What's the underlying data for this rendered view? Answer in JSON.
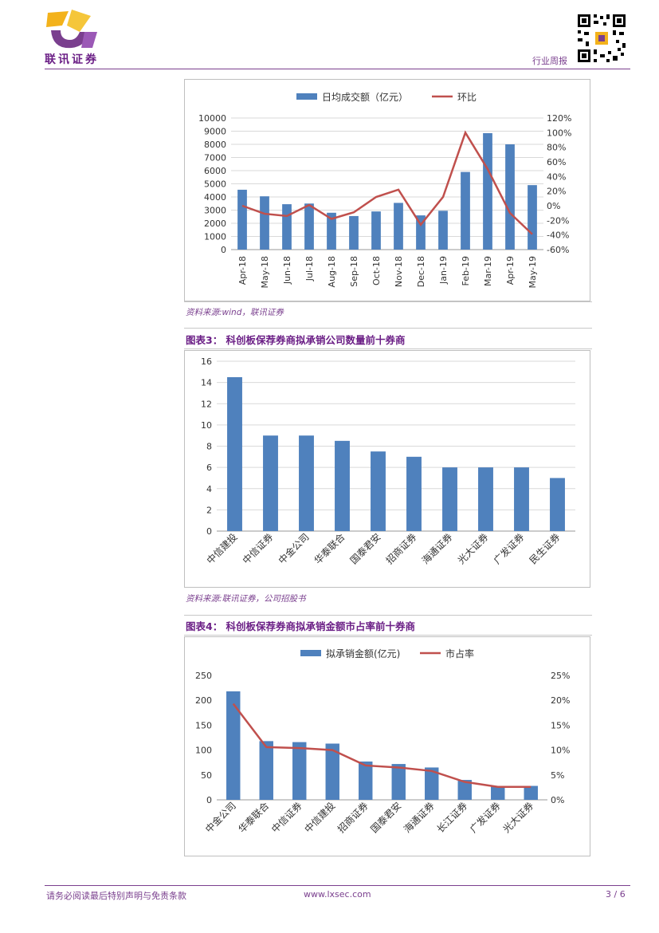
{
  "header": {
    "brand": "联讯证券",
    "report_type": "行业周报"
  },
  "figure_top": {
    "source": "资料来源:wind，联讯证券"
  },
  "figure3": {
    "caption": "图表3：  科创板保荐券商拟承销公司数量前十券商",
    "source": "资料来源:联讯证券，公司招股书"
  },
  "figure4": {
    "caption": "图表4：  科创板保荐券商拟承销金额市占率前十券商"
  },
  "footer": {
    "disclaimer": "请务必阅读最后特别声明与免责条款",
    "website": "www.lxsec.com",
    "page": "3 / 6"
  },
  "colors": {
    "bar": "#4f81bd",
    "line": "#c0504d",
    "brand_purple": "#7a3f8e"
  },
  "chart_data": [
    {
      "type": "bar",
      "title": "",
      "categories": [
        "Apr-18",
        "May-18",
        "Jun-18",
        "Jul-18",
        "Aug-18",
        "Sep-18",
        "Oct-18",
        "Nov-18",
        "Dec-18",
        "Jan-19",
        "Feb-19",
        "Mar-19",
        "Apr-19",
        "May-19"
      ],
      "series": [
        {
          "name": "日均成交额（亿元）",
          "type": "bar",
          "axis": "left",
          "values": [
            4550,
            4050,
            3450,
            3500,
            2800,
            2550,
            2900,
            3550,
            2600,
            2950,
            5900,
            8850,
            8000,
            4900
          ]
        },
        {
          "name": "环比",
          "type": "line",
          "axis": "right",
          "values": [
            0.0,
            -0.11,
            -0.14,
            0.01,
            -0.18,
            -0.09,
            0.12,
            0.22,
            -0.26,
            0.12,
            1.0,
            0.5,
            -0.1,
            -0.39
          ]
        }
      ],
      "left_ticks": [
        "0",
        "1000",
        "2000",
        "3000",
        "4000",
        "5000",
        "6000",
        "7000",
        "8000",
        "9000",
        "10000"
      ],
      "right_ticks": [
        "-60%",
        "-40%",
        "-20%",
        "0%",
        "20%",
        "40%",
        "60%",
        "80%",
        "100%",
        "120%"
      ],
      "ylim": [
        0,
        10000
      ],
      "y2lim": [
        -0.6,
        1.2
      ],
      "grid": true,
      "legend": "top"
    },
    {
      "type": "bar",
      "title": "",
      "categories": [
        "中信建投",
        "中信证券",
        "中金公司",
        "华泰联合",
        "国泰君安",
        "招商证券",
        "海通证券",
        "光大证券",
        "广发证券",
        "民生证券"
      ],
      "values": [
        14.5,
        9,
        9,
        8.5,
        7.5,
        7,
        6,
        6,
        6,
        5
      ],
      "left_ticks": [
        "0",
        "2",
        "4",
        "6",
        "8",
        "10",
        "12",
        "14",
        "16"
      ],
      "ylim": [
        0,
        16
      ],
      "grid": true
    },
    {
      "type": "bar",
      "title": "",
      "categories": [
        "中金公司",
        "华泰联合",
        "中信证券",
        "中信建投",
        "招商证券",
        "国泰君安",
        "海通证券",
        "长江证券",
        "广发证券",
        "光大证券"
      ],
      "series": [
        {
          "name": "拟承销金额(亿元)",
          "type": "bar",
          "axis": "left",
          "values": [
            218,
            118,
            116,
            113,
            77,
            72,
            65,
            40,
            28,
            28
          ]
        },
        {
          "name": "市占率",
          "type": "line",
          "axis": "right",
          "values": [
            0.193,
            0.106,
            0.104,
            0.1,
            0.069,
            0.065,
            0.058,
            0.036,
            0.026,
            0.026
          ]
        }
      ],
      "left_ticks": [
        "0",
        "50",
        "100",
        "150",
        "200",
        "250"
      ],
      "right_ticks": [
        "0%",
        "5%",
        "10%",
        "15%",
        "20%",
        "25%"
      ],
      "ylim": [
        0,
        250
      ],
      "y2lim": [
        0,
        0.25
      ],
      "grid": false,
      "legend": "top"
    }
  ]
}
